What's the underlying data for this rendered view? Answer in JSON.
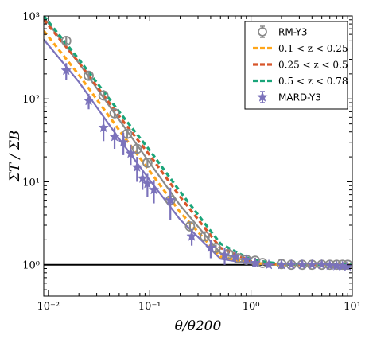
{
  "chart_data": {
    "type": "line",
    "xlabel": "θ/θ200",
    "ylabel": "ΣT / ΣB",
    "xscale": "log",
    "yscale": "log",
    "xlim": [
      0.009,
      10
    ],
    "ylim": [
      0.42,
      1000
    ],
    "x_ticks": [
      0.01,
      0.1,
      1,
      10
    ],
    "x_tick_labels": [
      "10⁻²",
      "10⁻¹",
      "10⁰",
      "10¹"
    ],
    "y_ticks": [
      1,
      10,
      100,
      1000
    ],
    "y_tick_labels": [
      "10⁰",
      "10¹",
      "10²",
      "10³"
    ],
    "reference_line": {
      "y": 1,
      "color": "#000000"
    },
    "legend_position": "top-right",
    "series": [
      {
        "name": "RM-Y3",
        "kind": "points",
        "marker": "open-circle",
        "color": "#8a8a8a",
        "x": [
          0.015,
          0.025,
          0.035,
          0.045,
          0.06,
          0.075,
          0.095,
          0.16,
          0.25,
          0.35,
          0.45,
          0.6,
          0.75,
          0.9,
          1.1,
          1.3,
          2.0,
          2.5,
          3.2,
          4.0,
          5.0,
          6.0,
          7.0,
          8.0,
          9.0
        ],
        "y": [
          500,
          190,
          110,
          67,
          38,
          25,
          17,
          6.0,
          2.9,
          2.2,
          1.6,
          1.35,
          1.2,
          1.15,
          1.12,
          1.05,
          1.02,
          1.0,
          1.0,
          1.0,
          1.0,
          1.0,
          1.0,
          1.0,
          1.0
        ],
        "yerr": [
          60,
          20,
          12,
          8,
          5,
          3,
          2,
          0.8,
          0.35,
          0.25,
          0.15,
          0.1,
          0.1,
          0.1,
          0.1,
          0.08,
          0.06,
          0.06,
          0.06,
          0.05,
          0.05,
          0.05,
          0.05,
          0.05,
          0.05
        ]
      },
      {
        "name": "RM-Y3 model",
        "kind": "line",
        "color": "#8a8a8a",
        "x": [
          0.009,
          0.02,
          0.05,
          0.1,
          0.2,
          0.5,
          1,
          2,
          5,
          10
        ],
        "y": [
          960,
          270,
          56,
          17,
          5.2,
          1.38,
          1.07,
          1.01,
          1.0,
          1.0
        ]
      },
      {
        "name": "0.1 < z < 0.25",
        "kind": "dashed-line",
        "color": "#ffa61a",
        "x": [
          0.009,
          0.02,
          0.05,
          0.1,
          0.2,
          0.5,
          1,
          2,
          5,
          10
        ],
        "y": [
          660,
          195,
          42,
          13.5,
          4.3,
          1.25,
          1.05,
          1.0,
          1.0,
          1.0
        ]
      },
      {
        "name": "0.25 < z < 0.5",
        "kind": "dashed-line",
        "color": "#d8562a",
        "x": [
          0.009,
          0.02,
          0.05,
          0.1,
          0.2,
          0.5,
          1,
          2,
          5,
          10
        ],
        "y": [
          900,
          275,
          62,
          21,
          6.6,
          1.6,
          1.1,
          1.01,
          1.0,
          1.0
        ]
      },
      {
        "name": "0.5 < z < 0.78",
        "kind": "dashed-line",
        "color": "#1aa57a",
        "x": [
          0.009,
          0.02,
          0.05,
          0.1,
          0.2,
          0.5,
          1,
          2,
          5,
          10
        ],
        "y": [
          1000,
          300,
          70,
          24,
          7.6,
          1.8,
          1.15,
          1.02,
          1.0,
          1.0
        ]
      },
      {
        "name": "MARD-Y3",
        "kind": "points",
        "marker": "filled-star",
        "color": "#7b72bb",
        "x": [
          0.015,
          0.025,
          0.035,
          0.045,
          0.055,
          0.065,
          0.075,
          0.085,
          0.095,
          0.11,
          0.16,
          0.26,
          0.4,
          0.55,
          0.7,
          0.9,
          1.1,
          1.5,
          2.0,
          2.5,
          3.2,
          4.0,
          5.0,
          6.0,
          7.0,
          8.0,
          9.0
        ],
        "y": [
          220,
          95,
          45,
          35,
          30,
          22,
          15,
          11,
          9.5,
          8,
          6,
          2.2,
          1.6,
          1.3,
          1.25,
          1.15,
          1.05,
          1.0,
          1.0,
          1.0,
          1.0,
          1.0,
          1.0,
          0.98,
          0.97,
          0.96,
          0.96
        ],
        "yerr": [
          50,
          20,
          14,
          10,
          9,
          6,
          5,
          3,
          3,
          2.5,
          2.5,
          0.5,
          0.4,
          0.3,
          0.2,
          0.15,
          0.12,
          0.08,
          0.08,
          0.07,
          0.06,
          0.06,
          0.06,
          0.06,
          0.06,
          0.06,
          0.06
        ]
      },
      {
        "name": "MARD-Y3 model",
        "kind": "line",
        "color": "#7b72bb",
        "x": [
          0.009,
          0.02,
          0.05,
          0.1,
          0.2,
          0.5,
          1,
          2,
          5,
          10
        ],
        "y": [
          520,
          160,
          33,
          10.5,
          3.5,
          1.18,
          1.03,
          1.0,
          1.0,
          0.98
        ]
      }
    ],
    "legend": [
      {
        "label": "RM-Y3",
        "symbol": "errorbar-circle",
        "color": "#8a8a8a"
      },
      {
        "label": "0.1 < z < 0.25",
        "symbol": "dash",
        "color": "#ffa61a"
      },
      {
        "label": "0.25 < z < 0.5",
        "symbol": "dash",
        "color": "#d8562a"
      },
      {
        "label": "0.5 < z < 0.78",
        "symbol": "dash",
        "color": "#1aa57a"
      },
      {
        "label": "MARD-Y3",
        "symbol": "errorbar-star",
        "color": "#7b72bb"
      }
    ]
  }
}
